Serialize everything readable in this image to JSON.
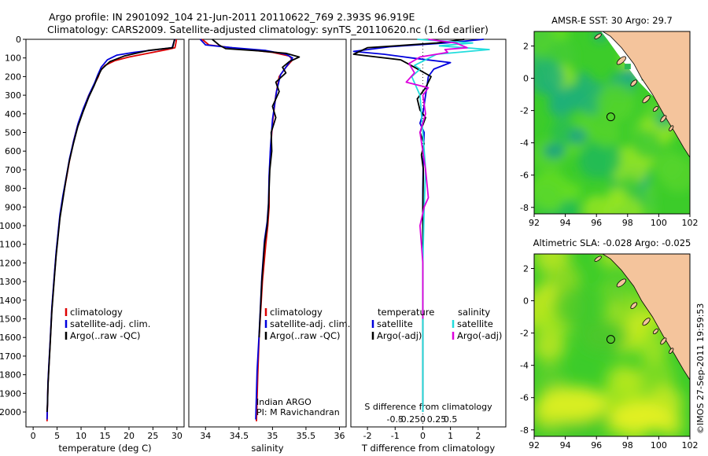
{
  "header": {
    "line1": "Argo profile: IN 2901092_104 21-Jun-2011 20110622_769 2.393S 96.919E",
    "line2": "Climatology: CARS2009. Satellite-adjusted climatology: synTS_20110620.nc (1.6d earlier)"
  },
  "credit": "©IMOS 27-Sep-2011 19:59:53",
  "colors": {
    "climatology": "#dd0000",
    "satellite_t": "#0000dd",
    "argo": "#000000",
    "satellite_s": "#22dddd",
    "argo_s": "#dd00dd",
    "sea_green": "#33cc22",
    "land": "#f4c49c"
  },
  "chart_data": [
    {
      "id": "temperature",
      "type": "line",
      "xlabel": "temperature (deg C)",
      "ylabel": "",
      "xlim": [
        -1.5,
        31.5
      ],
      "ylim": [
        0,
        2080
      ],
      "y_inverted": true,
      "xticks": [
        0,
        5,
        10,
        15,
        20,
        25,
        30
      ],
      "yticks": [
        0,
        100,
        200,
        300,
        400,
        500,
        600,
        700,
        800,
        900,
        1000,
        1100,
        1200,
        1300,
        1400,
        1500,
        1600,
        1700,
        1800,
        1900,
        2000
      ],
      "legend": [
        "climatology",
        "satellite-adj. clim.",
        "Argo(..raw -QC)"
      ],
      "series": [
        {
          "name": "climatology",
          "color": "#dd0000",
          "points": [
            [
              29.9,
              0
            ],
            [
              29.8,
              20
            ],
            [
              29.6,
              45
            ],
            [
              28,
              55
            ],
            [
              24,
              75
            ],
            [
              20,
              95
            ],
            [
              17,
              115
            ],
            [
              15,
              140
            ],
            [
              14,
              170
            ],
            [
              13.6,
              200
            ],
            [
              12.8,
              240
            ],
            [
              11.6,
              300
            ],
            [
              10.4,
              380
            ],
            [
              9.3,
              460
            ],
            [
              8.4,
              550
            ],
            [
              7.6,
              650
            ],
            [
              6.9,
              750
            ],
            [
              6.2,
              850
            ],
            [
              5.6,
              950
            ],
            [
              5.2,
              1050
            ],
            [
              4.8,
              1150
            ],
            [
              4.5,
              1250
            ],
            [
              4.2,
              1350
            ],
            [
              3.9,
              1450
            ],
            [
              3.7,
              1550
            ],
            [
              3.5,
              1650
            ],
            [
              3.3,
              1750
            ],
            [
              3.1,
              1850
            ],
            [
              3.0,
              1950
            ],
            [
              2.9,
              2050
            ]
          ]
        },
        {
          "name": "satellite-adj. clim.",
          "color": "#0000dd",
          "points": [
            [
              29.6,
              0
            ],
            [
              29.3,
              20
            ],
            [
              29,
              45
            ],
            [
              26,
              55
            ],
            [
              21,
              70
            ],
            [
              17.5,
              85
            ],
            [
              15.5,
              110
            ],
            [
              14.2,
              150
            ],
            [
              13.5,
              190
            ],
            [
              12.9,
              230
            ],
            [
              11.8,
              290
            ],
            [
              10.5,
              370
            ],
            [
              9.4,
              450
            ],
            [
              8.5,
              540
            ],
            [
              7.6,
              640
            ],
            [
              6.9,
              740
            ],
            [
              6.2,
              840
            ],
            [
              5.6,
              940
            ],
            [
              5.2,
              1040
            ],
            [
              4.8,
              1140
            ],
            [
              4.5,
              1240
            ],
            [
              4.2,
              1340
            ],
            [
              3.9,
              1440
            ],
            [
              3.7,
              1540
            ],
            [
              3.5,
              1640
            ],
            [
              3.3,
              1740
            ],
            [
              3.1,
              1840
            ],
            [
              3.0,
              1940
            ],
            [
              2.9,
              2040
            ]
          ]
        },
        {
          "name": "Argo(..raw -QC)",
          "color": "#000000",
          "points": [
            [
              29.5,
              0
            ],
            [
              29.3,
              25
            ],
            [
              29.1,
              45
            ],
            [
              24,
              60
            ],
            [
              19,
              90
            ],
            [
              16,
              120
            ],
            [
              14.3,
              160
            ],
            [
              13.5,
              200
            ],
            [
              12.7,
              250
            ],
            [
              11.6,
              310
            ],
            [
              10.4,
              390
            ],
            [
              9.3,
              470
            ],
            [
              8.4,
              560
            ],
            [
              7.5,
              660
            ],
            [
              6.8,
              760
            ],
            [
              6.2,
              860
            ],
            [
              5.6,
              960
            ],
            [
              5.2,
              1060
            ],
            [
              4.8,
              1160
            ],
            [
              4.5,
              1260
            ],
            [
              4.2,
              1360
            ],
            [
              3.9,
              1460
            ],
            [
              3.7,
              1560
            ],
            [
              3.5,
              1660
            ],
            [
              3.3,
              1760
            ],
            [
              3.1,
              1860
            ],
            [
              3.0,
              1960
            ],
            [
              2.9,
              2000
            ]
          ]
        }
      ]
    },
    {
      "id": "salinity",
      "type": "line",
      "xlabel": "salinity",
      "ylabel": "",
      "xlim": [
        33.75,
        36.1
      ],
      "ylim": [
        0,
        2080
      ],
      "y_inverted": true,
      "xticks": [
        34,
        34.5,
        35,
        35.5,
        36
      ],
      "legend": [
        "climatology",
        "satellite-adj. clim.",
        "Argo(..raw -QC)"
      ],
      "annotations": [
        "Indian ARGO",
        "PI: M Ravichandran"
      ],
      "series": [
        {
          "name": "climatology",
          "color": "#dd0000",
          "points": [
            [
              33.95,
              0
            ],
            [
              34.05,
              30
            ],
            [
              34.5,
              50
            ],
            [
              35.0,
              70
            ],
            [
              35.25,
              90
            ],
            [
              35.3,
              110
            ],
            [
              35.2,
              150
            ],
            [
              35.1,
              200
            ],
            [
              35.05,
              300
            ],
            [
              35.0,
              450
            ],
            [
              34.97,
              600
            ],
            [
              34.95,
              750
            ],
            [
              34.95,
              900
            ],
            [
              34.93,
              1000
            ],
            [
              34.9,
              1100
            ],
            [
              34.85,
              1300
            ],
            [
              34.8,
              1600
            ],
            [
              34.78,
              1800
            ],
            [
              34.76,
              2050
            ]
          ]
        },
        {
          "name": "satellite-adj. clim.",
          "color": "#0000dd",
          "points": [
            [
              33.92,
              0
            ],
            [
              34.0,
              30
            ],
            [
              34.4,
              45
            ],
            [
              34.9,
              60
            ],
            [
              35.2,
              80
            ],
            [
              35.3,
              100
            ],
            [
              35.22,
              140
            ],
            [
              35.12,
              190
            ],
            [
              35.06,
              280
            ],
            [
              35.0,
              430
            ],
            [
              34.97,
              580
            ],
            [
              34.95,
              730
            ],
            [
              34.94,
              880
            ],
            [
              34.92,
              980
            ],
            [
              34.88,
              1080
            ],
            [
              34.84,
              1280
            ],
            [
              34.8,
              1580
            ],
            [
              34.77,
              1780
            ],
            [
              34.75,
              2040
            ]
          ]
        },
        {
          "name": "Argo(..raw -QC)",
          "color": "#000000",
          "points": [
            [
              34.1,
              0
            ],
            [
              34.2,
              30
            ],
            [
              34.3,
              50
            ],
            [
              34.8,
              62
            ],
            [
              35.2,
              75
            ],
            [
              35.4,
              95
            ],
            [
              35.25,
              120
            ],
            [
              35.15,
              150
            ],
            [
              35.2,
              180
            ],
            [
              35.05,
              230
            ],
            [
              35.1,
              280
            ],
            [
              35.0,
              360
            ],
            [
              35.05,
              420
            ],
            [
              34.98,
              500
            ],
            [
              34.99,
              600
            ],
            [
              34.96,
              700
            ],
            [
              34.95,
              800
            ],
            [
              34.94,
              900
            ],
            [
              34.92,
              1000
            ],
            [
              34.88,
              1100
            ],
            [
              34.86,
              1200
            ],
            [
              34.84,
              1300
            ],
            [
              34.82,
              1450
            ],
            [
              34.8,
              1600
            ]
          ]
        }
      ]
    },
    {
      "id": "difference",
      "type": "line",
      "xlabel": "T difference from climatology",
      "x2label": "S difference from climatology",
      "ylabel": "",
      "xlim": [
        -2.6,
        3.0
      ],
      "ylim": [
        0,
        2080
      ],
      "y_inverted": true,
      "xticks": [
        -2,
        -1,
        0,
        1,
        2
      ],
      "xtick_labels": [
        "-2",
        "-1",
        "0",
        "1",
        "2"
      ],
      "x2ticks": [
        -1,
        -0.5,
        0,
        0.5,
        1.0
      ],
      "x2tick_labels": [
        "-0.5",
        "-0.25",
        "0",
        "0.25",
        "0.5"
      ],
      "legend_titles": [
        "temperature",
        "salinity"
      ],
      "legend": [
        "satellite",
        "Argo(-adj)",
        "satellite",
        "Argo(-adj)"
      ],
      "series": [
        {
          "name": "temperature satellite",
          "color": "#0000dd",
          "points": [
            [
              2.2,
              0
            ],
            [
              0.8,
              20
            ],
            [
              -1.2,
              40
            ],
            [
              -2.5,
              65
            ],
            [
              -1.4,
              80
            ],
            [
              -0.4,
              100
            ],
            [
              1.0,
              125
            ],
            [
              0.4,
              160
            ],
            [
              0.2,
              200
            ],
            [
              0.1,
              300
            ],
            [
              0,
              400
            ],
            [
              -0.1,
              450
            ],
            [
              0.05,
              500
            ],
            [
              0.02,
              600
            ],
            [
              0.0,
              800
            ],
            [
              0,
              1000
            ],
            [
              0,
              1500
            ],
            [
              0,
              2000
            ]
          ]
        },
        {
          "name": "temperature Argo(-adj)",
          "color": "#000000",
          "points": [
            [
              1.5,
              0
            ],
            [
              0.5,
              20
            ],
            [
              -2.0,
              45
            ],
            [
              -2.5,
              80
            ],
            [
              -0.8,
              110
            ],
            [
              -0.3,
              150
            ],
            [
              0.3,
              200
            ],
            [
              0.1,
              260
            ],
            [
              -0.2,
              320
            ],
            [
              -0.1,
              380
            ],
            [
              0.1,
              420
            ],
            [
              -0.1,
              500
            ],
            [
              0.05,
              560
            ],
            [
              -0.05,
              620
            ],
            [
              0.02,
              700
            ],
            [
              0.0,
              900
            ],
            [
              0.0,
              1200
            ],
            [
              0,
              1500
            ],
            [
              0,
              2000
            ]
          ]
        },
        {
          "name": "salinity satellite",
          "color": "#22dddd",
          "points": [
            [
              -0.2,
              0
            ],
            [
              1.8,
              20
            ],
            [
              0.6,
              35
            ],
            [
              2.4,
              55
            ],
            [
              0.5,
              80
            ],
            [
              0.1,
              110
            ],
            [
              -0.3,
              140
            ],
            [
              -0.1,
              160
            ],
            [
              -0.4,
              200
            ],
            [
              -0.1,
              300
            ],
            [
              0.0,
              500
            ],
            [
              0.1,
              700
            ],
            [
              0.05,
              900
            ],
            [
              0.0,
              1200
            ],
            [
              0.0,
              1600
            ],
            [
              0.0,
              2000
            ]
          ]
        },
        {
          "name": "salinity Argo(-adj)",
          "color": "#dd00dd",
          "points": [
            [
              0.2,
              0
            ],
            [
              1.2,
              20
            ],
            [
              1.6,
              45
            ],
            [
              0.8,
              55
            ],
            [
              0.9,
              70
            ],
            [
              -0.1,
              95
            ],
            [
              -0.5,
              130
            ],
            [
              -0.3,
              180
            ],
            [
              -0.6,
              230
            ],
            [
              0.2,
              260
            ],
            [
              0.0,
              300
            ],
            [
              0.1,
              400
            ],
            [
              -0.1,
              500
            ],
            [
              0.1,
              700
            ],
            [
              0.2,
              850
            ],
            [
              0.05,
              900
            ],
            [
              -0.1,
              1000
            ],
            [
              0.0,
              1200
            ],
            [
              0.0,
              1500
            ]
          ]
        }
      ]
    },
    {
      "id": "sst_map",
      "type": "heatmap",
      "title": "AMSR-E SST: 30 Argo: 29.7",
      "xlim": [
        92,
        102
      ],
      "ylim": [
        -8.4,
        2.9
      ],
      "xticks": [
        92,
        94,
        96,
        98,
        100,
        102
      ],
      "yticks": [
        -8,
        -6,
        -4,
        -2,
        0,
        2
      ],
      "argo_position": [
        96.919,
        -2.393
      ]
    },
    {
      "id": "sla_map",
      "type": "heatmap",
      "title": "Altimetric SLA: -0.028 Argo: -0.025",
      "xlim": [
        92,
        102
      ],
      "ylim": [
        -8.4,
        2.9
      ],
      "xticks": [
        92,
        94,
        96,
        98,
        100,
        102
      ],
      "yticks": [
        -8,
        -6,
        -4,
        -2,
        0,
        2
      ],
      "argo_position": [
        96.919,
        -2.393
      ]
    }
  ]
}
